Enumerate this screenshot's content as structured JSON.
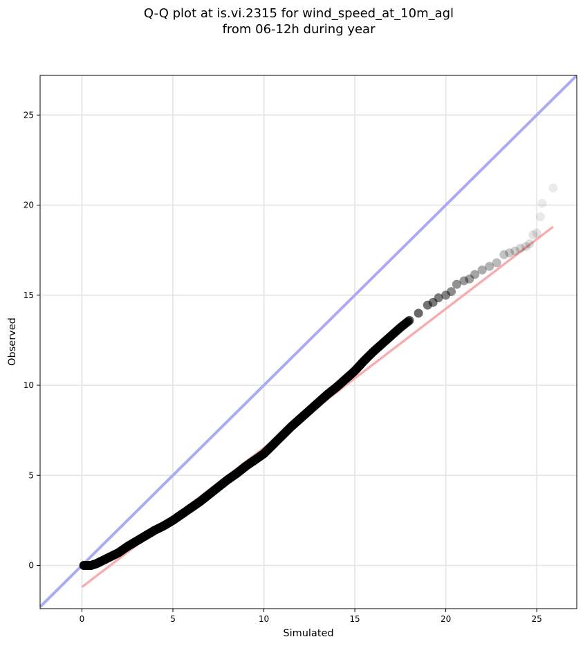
{
  "chart_data": {
    "type": "scatter",
    "title_line1": "Q-Q plot at is.vi.2315 for wind_speed_at_10m_agl",
    "title_line2": "from 06-12h during year",
    "xlabel": "Simulated",
    "ylabel": "Observed",
    "xlim": [
      -2.3,
      27.2
    ],
    "ylim": [
      -2.4,
      27.2
    ],
    "xticks": [
      0,
      5,
      10,
      15,
      20,
      25
    ],
    "yticks": [
      0,
      5,
      10,
      15,
      20,
      25
    ],
    "xtick_labels": [
      "0",
      "5",
      "10",
      "15",
      "20",
      "25"
    ],
    "ytick_labels": [
      "0",
      "5",
      "10",
      "15",
      "20",
      "25"
    ],
    "grid": true,
    "legend": false,
    "colors": {
      "points": "#000000",
      "identity_line": "#aaaaf5",
      "fit_line": "#f7adad"
    },
    "series": [
      {
        "kind": "reference-line",
        "x": [
          -2.3,
          27.2
        ],
        "y": [
          -2.3,
          27.2
        ]
      },
      {
        "kind": "fit-line",
        "x": [
          0.0,
          25.9
        ],
        "y": [
          -1.2,
          18.8
        ]
      },
      {
        "kind": "quantiles",
        "x": [
          0.1,
          0.3,
          0.5,
          0.8,
          1.0,
          1.3,
          1.6,
          2.0,
          2.5,
          3.0,
          3.5,
          4.0,
          4.5,
          5.0,
          5.5,
          6.0,
          6.5,
          7.0,
          7.5,
          8.0,
          8.5,
          9.0,
          9.5,
          10.0,
          10.5,
          11.0,
          11.5,
          12.0,
          12.5,
          13.0,
          13.5,
          14.0,
          14.5,
          15.0,
          15.5,
          16.0,
          16.5,
          17.0,
          17.5,
          18.0,
          18.5,
          19.0,
          19.3,
          19.6,
          20.0,
          20.3,
          20.6,
          21.0,
          21.3,
          21.6,
          22.0,
          22.4,
          22.8,
          23.2,
          23.5,
          23.8,
          24.1,
          24.4,
          24.6,
          24.8,
          25.0,
          25.2,
          25.3,
          25.9
        ],
        "y": [
          0.0,
          0.0,
          0.0,
          0.1,
          0.2,
          0.35,
          0.5,
          0.7,
          1.05,
          1.35,
          1.65,
          1.95,
          2.2,
          2.5,
          2.85,
          3.2,
          3.55,
          3.95,
          4.35,
          4.75,
          5.1,
          5.5,
          5.85,
          6.2,
          6.7,
          7.2,
          7.7,
          8.15,
          8.6,
          9.05,
          9.5,
          9.9,
          10.35,
          10.8,
          11.35,
          11.85,
          12.3,
          12.75,
          13.2,
          13.6,
          14.0,
          14.45,
          14.6,
          14.85,
          15.0,
          15.2,
          15.6,
          15.8,
          15.9,
          16.15,
          16.4,
          16.6,
          16.8,
          17.25,
          17.35,
          17.45,
          17.6,
          17.7,
          17.85,
          18.35,
          18.45,
          19.35,
          20.1,
          20.95
        ]
      }
    ]
  }
}
